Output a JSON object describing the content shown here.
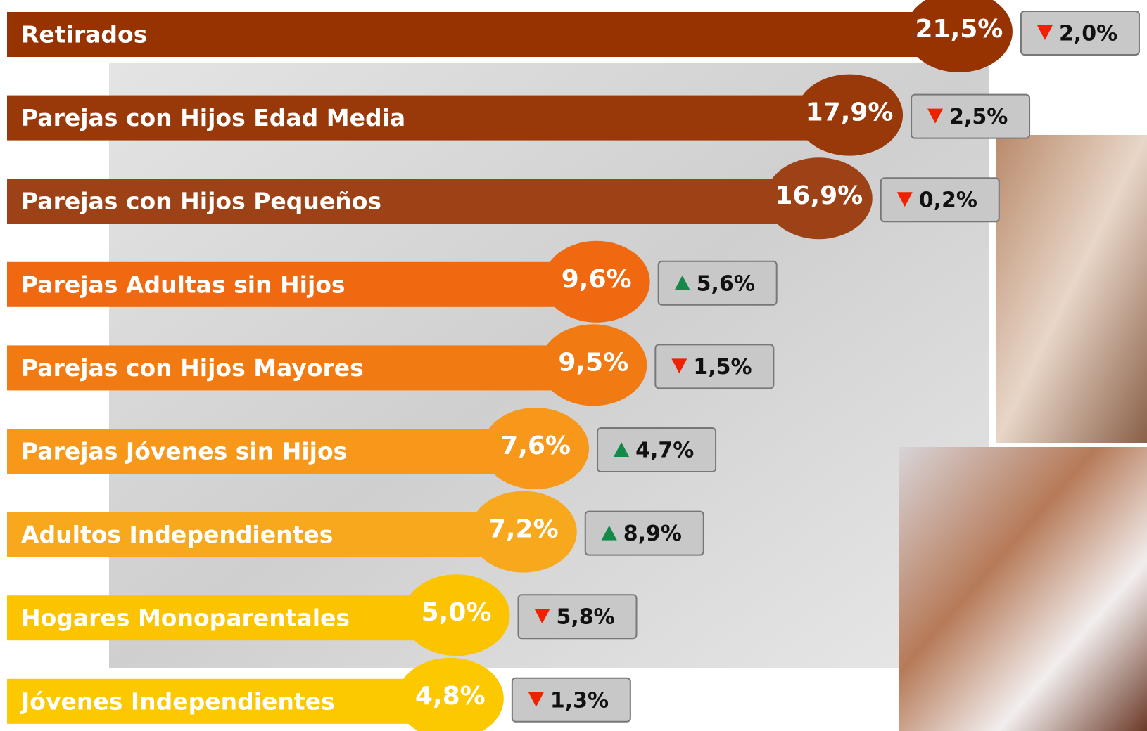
{
  "chart_data": {
    "type": "bar",
    "orientation": "horizontal",
    "categories": [
      "Retirados",
      "Parejas con Hijos Edad Media",
      "Parejas con Hijos Pequeños",
      "Parejas Adultas sin Hijos",
      "Parejas con Hijos Mayores",
      "Parejas Jóvenes sin Hijos",
      "Adultos Independientes",
      "Hogares Monoparentales",
      "Jóvenes Independientes"
    ],
    "values": [
      21.5,
      17.9,
      16.9,
      9.6,
      9.5,
      7.6,
      7.2,
      5.0,
      4.8
    ],
    "value_labels": [
      "21,5%",
      "17,9%",
      "16,9%",
      "9,6%",
      "9,5%",
      "7,6%",
      "7,2%",
      "5,0%",
      "4,8%"
    ],
    "colors": [
      "#973300",
      "#993808",
      "#9c4216",
      "#f06810",
      "#f27a12",
      "#f7981a",
      "#f8a81c",
      "#fbc300",
      "#fcc800"
    ],
    "changes": {
      "values": [
        2.0,
        2.5,
        0.2,
        5.6,
        1.5,
        4.7,
        8.9,
        5.8,
        1.3
      ],
      "value_labels": [
        "2,0%",
        "2,5%",
        "0,2%",
        "5,6%",
        "1,5%",
        "4,7%",
        "8,9%",
        "5,8%",
        "1,3%"
      ],
      "direction": [
        "down",
        "down",
        "down",
        "up",
        "down",
        "up",
        "up",
        "down",
        "down"
      ],
      "colors": {
        "up": "#138a4a",
        "down": "#ee2200"
      }
    }
  }
}
